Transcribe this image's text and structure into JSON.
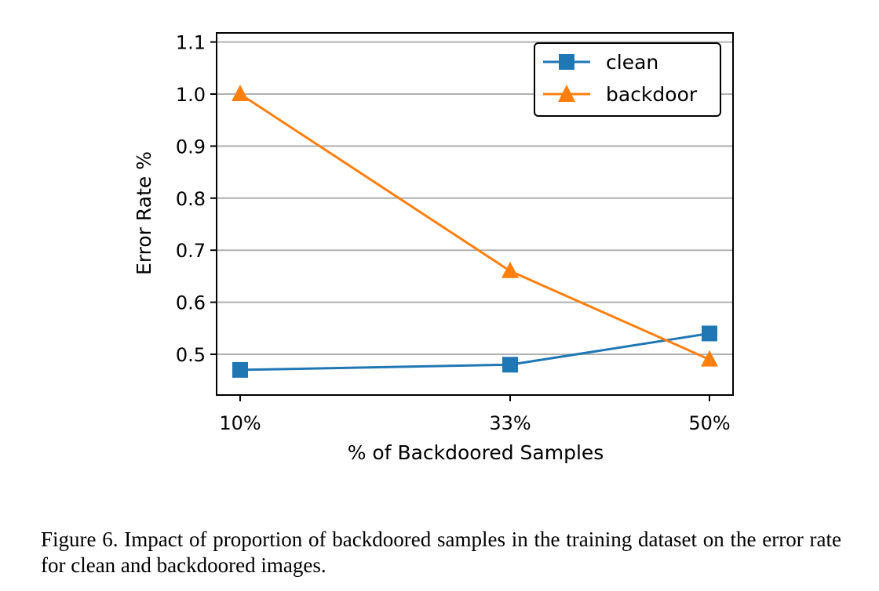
{
  "chart_data": {
    "type": "line",
    "categories": [
      "10%",
      "33%",
      "50%"
    ],
    "x": [
      10,
      33,
      50
    ],
    "series": [
      {
        "name": "clean",
        "values": [
          0.47,
          0.48,
          0.54
        ],
        "color": "#1f77b4",
        "marker": "square"
      },
      {
        "name": "backdoor",
        "values": [
          1.0,
          0.66,
          0.49
        ],
        "color": "#ff7f0e",
        "marker": "triangle-up"
      }
    ],
    "xlabel": "% of Backdoored Samples",
    "ylabel": "Error Rate %",
    "yticks": [
      "0.5",
      "0.6",
      "0.7",
      "0.8",
      "0.9",
      "1.0",
      "1.1"
    ],
    "ylim": [
      0.42,
      1.12
    ],
    "grid": "horizontal",
    "legend": "top-right"
  },
  "caption": "Figure 6. Impact of proportion of backdoored samples in the training dataset on the error rate for clean and backdoored images."
}
